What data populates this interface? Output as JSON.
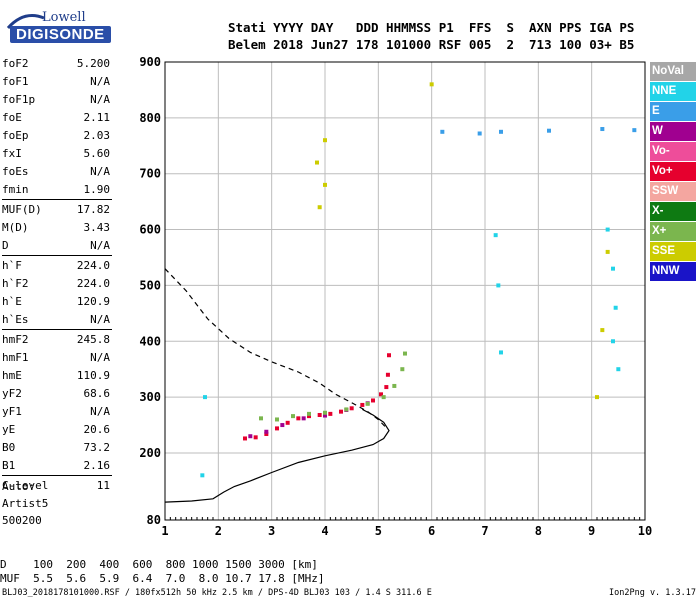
{
  "logo": {
    "line1": "Lowell",
    "line2": "DIGISONDE"
  },
  "header": {
    "line1": "Stati YYYY DAY   DDD HHMMSS P1  FFS  S  AXN PPS IGA PS",
    "line2": "Belem 2018 Jun27 178 101000 RSF 005  2  713 100 03+ B5"
  },
  "params": [
    {
      "label": "foF2",
      "value": "5.200"
    },
    {
      "label": "foF1",
      "value": "N/A"
    },
    {
      "label": "foF1p",
      "value": "N/A"
    },
    {
      "label": "foE",
      "value": "2.11"
    },
    {
      "label": "foEp",
      "value": "2.03"
    },
    {
      "label": "fxI",
      "value": "5.60"
    },
    {
      "label": "foEs",
      "value": "N/A"
    },
    {
      "label": "fmin",
      "value": "1.90"
    },
    {
      "label": "MUF(D)",
      "value": "17.82"
    },
    {
      "label": "M(D)",
      "value": "3.43"
    },
    {
      "label": "D",
      "value": "N/A"
    },
    {
      "label": "h`F",
      "value": "224.0"
    },
    {
      "label": "h`F2",
      "value": "224.0"
    },
    {
      "label": "h`E",
      "value": "120.9"
    },
    {
      "label": "h`Es",
      "value": "N/A"
    },
    {
      "label": "hmF2",
      "value": "245.8"
    },
    {
      "label": "hmF1",
      "value": "N/A"
    },
    {
      "label": "hmE",
      "value": "110.9"
    },
    {
      "label": "yF2",
      "value": "68.6"
    },
    {
      "label": "yF1",
      "value": "N/A"
    },
    {
      "label": "yE",
      "value": "20.6"
    },
    {
      "label": "B0",
      "value": "73.2"
    },
    {
      "label": "B1",
      "value": "2.16"
    },
    {
      "label": "C-level",
      "value": "11"
    }
  ],
  "autoscale": {
    "line1": "Auto:",
    "line2": "Artist5",
    "line3": "500200"
  },
  "legend": [
    {
      "label": "NoVal",
      "color": "#a7a7a7"
    },
    {
      "label": "NNE",
      "color": "#22d3e8"
    },
    {
      "label": "E",
      "color": "#3a9ee8"
    },
    {
      "label": "W",
      "color": "#a00090"
    },
    {
      "label": "Vo-",
      "color": "#ee4d9a"
    },
    {
      "label": "Vo+",
      "color": "#e6002e"
    },
    {
      "label": "SSW",
      "color": "#f4a6a0"
    },
    {
      "label": "X-",
      "color": "#0e7a12"
    },
    {
      "label": "X+",
      "color": "#7bb64e"
    },
    {
      "label": "SSE",
      "color": "#cccc00"
    },
    {
      "label": "NNW",
      "color": "#1a14c8"
    }
  ],
  "distance_table": {
    "row1": "D    100  200  400  600  800 1000 1500 3000 [km]",
    "row2": "MUF  5.5  5.6  5.9  6.4  7.0  8.0 10.7 17.8 [MHz]"
  },
  "footer": {
    "left": "BLJ03_2018178101000.RSF / 180fx512h 50 kHz 2.5 km / DPS-4D BLJ03 103 / 1.4 S 311.6 E",
    "right": "Ion2Png v. 1.3.17"
  },
  "chart_data": {
    "type": "scatter",
    "xlabel": "",
    "ylabel": "",
    "xlim": [
      1,
      10
    ],
    "ylim": [
      80,
      900
    ],
    "x_ticks": [
      1,
      2,
      3,
      4,
      5,
      6,
      7,
      8,
      9,
      10
    ],
    "y_ticks": [
      80,
      200,
      300,
      400,
      500,
      600,
      700,
      800,
      900
    ],
    "grid": true,
    "series": [
      {
        "name": "Vo+",
        "color": "#e6002e",
        "points": [
          [
            2.5,
            226
          ],
          [
            2.7,
            228
          ],
          [
            2.9,
            234
          ],
          [
            3.1,
            244
          ],
          [
            3.3,
            254
          ],
          [
            3.5,
            262
          ],
          [
            3.7,
            266
          ],
          [
            3.9,
            268
          ],
          [
            4.1,
            270
          ],
          [
            4.3,
            274
          ],
          [
            4.5,
            280
          ],
          [
            4.7,
            286
          ],
          [
            4.9,
            294
          ],
          [
            5.05,
            305
          ],
          [
            5.15,
            318
          ],
          [
            5.18,
            340
          ],
          [
            5.2,
            375
          ]
        ]
      },
      {
        "name": "W",
        "color": "#a00090",
        "points": [
          [
            2.6,
            230
          ],
          [
            2.9,
            238
          ],
          [
            3.2,
            250
          ],
          [
            3.6,
            262
          ],
          [
            4.0,
            267
          ],
          [
            4.4,
            277
          ],
          [
            4.8,
            289
          ]
        ]
      },
      {
        "name": "X+",
        "color": "#7bb64e",
        "points": [
          [
            2.8,
            262
          ],
          [
            3.1,
            260
          ],
          [
            3.4,
            266
          ],
          [
            3.7,
            270
          ],
          [
            4.0,
            272
          ],
          [
            4.4,
            278
          ],
          [
            4.8,
            288
          ],
          [
            5.1,
            300
          ],
          [
            5.3,
            320
          ],
          [
            5.45,
            350
          ],
          [
            5.5,
            378
          ]
        ]
      },
      {
        "name": "SSE",
        "color": "#cccc00",
        "points": [
          [
            3.9,
            640
          ],
          [
            4.0,
            680
          ],
          [
            3.85,
            720
          ],
          [
            4.0,
            760
          ],
          [
            6.0,
            860
          ],
          [
            9.1,
            300
          ],
          [
            9.2,
            420
          ],
          [
            9.3,
            560
          ]
        ]
      },
      {
        "name": "NNE",
        "color": "#22d3e8",
        "points": [
          [
            7.2,
            590
          ],
          [
            7.25,
            500
          ],
          [
            7.3,
            380
          ],
          [
            9.3,
            600
          ],
          [
            9.4,
            530
          ],
          [
            9.45,
            460
          ],
          [
            9.4,
            400
          ],
          [
            9.5,
            350
          ],
          [
            1.7,
            160
          ],
          [
            1.75,
            300
          ]
        ]
      },
      {
        "name": "E",
        "color": "#3a9ee8",
        "points": [
          [
            6.2,
            775
          ],
          [
            6.9,
            772
          ],
          [
            7.3,
            775
          ],
          [
            8.2,
            777
          ],
          [
            9.2,
            780
          ],
          [
            9.8,
            778
          ]
        ]
      }
    ],
    "curves": [
      {
        "name": "",
        "style": "solid",
        "points": [
          [
            1.0,
            112
          ],
          [
            1.5,
            114
          ],
          [
            1.9,
            118
          ],
          [
            2.1,
            130
          ],
          [
            2.3,
            140
          ],
          [
            2.6,
            150
          ],
          [
            3.0,
            165
          ],
          [
            3.5,
            183
          ],
          [
            4.0,
            195
          ],
          [
            4.5,
            205
          ],
          [
            4.9,
            215
          ],
          [
            5.1,
            226
          ],
          [
            5.2,
            240
          ],
          [
            5.1,
            255
          ],
          [
            4.9,
            268
          ],
          [
            4.7,
            278
          ]
        ]
      },
      {
        "name": "",
        "style": "dashed",
        "points": [
          [
            1.0,
            530
          ],
          [
            1.4,
            490
          ],
          [
            1.8,
            440
          ],
          [
            2.2,
            405
          ],
          [
            2.6,
            380
          ],
          [
            3.0,
            363
          ],
          [
            3.5,
            345
          ],
          [
            3.9,
            325
          ],
          [
            4.2,
            305
          ],
          [
            4.5,
            290
          ],
          [
            4.8,
            274
          ],
          [
            5.0,
            260
          ],
          [
            5.15,
            245
          ]
        ]
      }
    ]
  }
}
